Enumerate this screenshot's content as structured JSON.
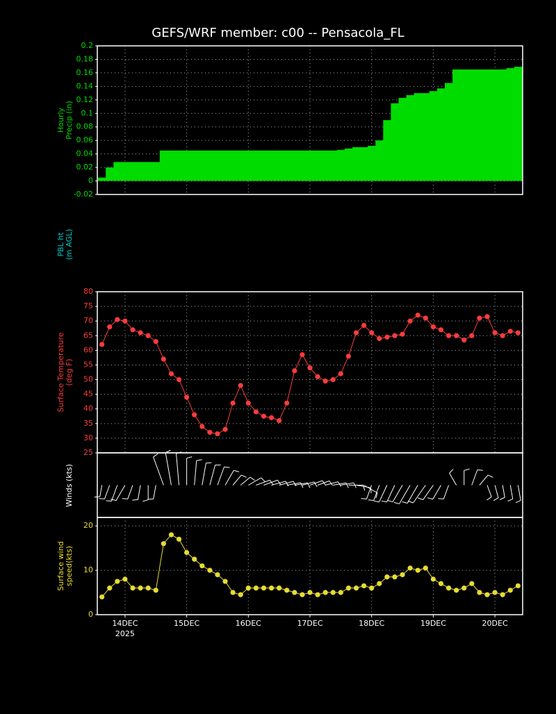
{
  "chart_data": [
    {
      "type": "bar",
      "title": "GEFS/WRF member: c00 -- Pensacola_FL",
      "ylabel": [
        "Hourly",
        "Precip (in)"
      ],
      "color": "#00dc00",
      "grid": true,
      "xlim": [
        13.55,
        20.45
      ],
      "ylim": [
        -0.02,
        0.2
      ],
      "yticks": [
        -0.02,
        0,
        0.02,
        0.04,
        0.06,
        0.08,
        0.1,
        0.12,
        0.14,
        0.16,
        0.18,
        0.2
      ],
      "x": [
        13.625,
        13.75,
        13.875,
        14,
        14.125,
        14.25,
        14.375,
        14.5,
        14.625,
        14.75,
        14.875,
        15,
        15.125,
        15.25,
        15.375,
        15.5,
        15.625,
        15.75,
        15.875,
        16,
        16.125,
        16.25,
        16.375,
        16.5,
        16.625,
        16.75,
        16.875,
        17,
        17.125,
        17.25,
        17.375,
        17.5,
        17.625,
        17.75,
        17.875,
        18,
        18.125,
        18.25,
        18.375,
        18.5,
        18.625,
        18.75,
        18.875,
        19,
        19.125,
        19.25,
        19.375,
        19.5,
        19.625,
        19.75,
        19.875,
        20,
        20.125,
        20.25,
        20.375
      ],
      "values": [
        0.005,
        0.02,
        0.028,
        0.028,
        0.028,
        0.028,
        0.028,
        0.028,
        0.045,
        0.045,
        0.045,
        0.045,
        0.045,
        0.045,
        0.045,
        0.045,
        0.045,
        0.045,
        0.045,
        0.045,
        0.045,
        0.045,
        0.045,
        0.045,
        0.045,
        0.045,
        0.045,
        0.045,
        0.045,
        0.045,
        0.045,
        0.046,
        0.048,
        0.05,
        0.05,
        0.052,
        0.06,
        0.09,
        0.115,
        0.123,
        0.127,
        0.13,
        0.13,
        0.133,
        0.137,
        0.145,
        0.165,
        0.165,
        0.165,
        0.165,
        0.165,
        0.165,
        0.165,
        0.167,
        0.169
      ]
    },
    {
      "type": "empty",
      "ylabel": [
        "PBL ht",
        "(m AGL)"
      ],
      "color": "#00c8c8"
    },
    {
      "type": "line",
      "ylabel": [
        "Surface Temperature",
        "(deg F)"
      ],
      "color": "#fa3c3c",
      "grid": true,
      "xlim": [
        13.55,
        20.45
      ],
      "ylim": [
        25,
        80
      ],
      "yticks": [
        25,
        30,
        35,
        40,
        45,
        50,
        55,
        60,
        65,
        70,
        75,
        80
      ],
      "x": [
        13.625,
        13.75,
        13.875,
        14,
        14.125,
        14.25,
        14.375,
        14.5,
        14.625,
        14.75,
        14.875,
        15,
        15.125,
        15.25,
        15.375,
        15.5,
        15.625,
        15.75,
        15.875,
        16,
        16.125,
        16.25,
        16.375,
        16.5,
        16.625,
        16.75,
        16.875,
        17,
        17.125,
        17.25,
        17.375,
        17.5,
        17.625,
        17.75,
        17.875,
        18,
        18.125,
        18.25,
        18.375,
        18.5,
        18.625,
        18.75,
        18.875,
        19,
        19.125,
        19.25,
        19.375,
        19.5,
        19.625,
        19.75,
        19.875,
        20,
        20.125,
        20.25,
        20.375
      ],
      "values": [
        62,
        68,
        70.5,
        70,
        67,
        66,
        65,
        63,
        57,
        52,
        50,
        44,
        38,
        34,
        32,
        31.5,
        33,
        42,
        48,
        42,
        39,
        37.5,
        37,
        36,
        42,
        53,
        58.5,
        54,
        51,
        49.5,
        50,
        52,
        58,
        66,
        68.5,
        66,
        64,
        64.5,
        65,
        65.5,
        70,
        72,
        71,
        68,
        67,
        65,
        65,
        63.5,
        65,
        71,
        71.5,
        66,
        65,
        66.5,
        66
      ]
    },
    {
      "type": "barbs",
      "ylabel": [
        "Winds (kts)"
      ],
      "color": "#ffffff",
      "xlim": [
        13.55,
        20.45
      ],
      "x": [
        13.625,
        13.75,
        13.875,
        14,
        14.125,
        14.25,
        14.375,
        14.5,
        14.625,
        14.75,
        14.875,
        15,
        15.125,
        15.25,
        15.375,
        15.5,
        15.625,
        15.75,
        15.875,
        16,
        16.125,
        16.25,
        16.375,
        16.5,
        16.625,
        16.75,
        16.875,
        17,
        17.125,
        17.25,
        17.375,
        17.5,
        17.625,
        17.75,
        17.875,
        18,
        18.125,
        18.25,
        18.375,
        18.5,
        18.625,
        18.75,
        18.875,
        19,
        19.125,
        19.25,
        19.375,
        19.5,
        19.625,
        19.75,
        19.875,
        20,
        20.125,
        20.25,
        20.375
      ],
      "direction": [
        190,
        200,
        200,
        210,
        200,
        190,
        180,
        190,
        340,
        350,
        355,
        0,
        5,
        10,
        15,
        20,
        30,
        40,
        50,
        60,
        70,
        70,
        75,
        75,
        80,
        80,
        75,
        70,
        70,
        75,
        80,
        80,
        90,
        100,
        120,
        200,
        200,
        205,
        205,
        210,
        210,
        210,
        215,
        215,
        210,
        200,
        330,
        0,
        20,
        40,
        160,
        165,
        170,
        170,
        170
      ]
    },
    {
      "type": "scatter",
      "ylabel": [
        "Surface wind",
        "speed(kts)"
      ],
      "color": "#e6dc32",
      "grid": true,
      "xlim": [
        13.55,
        20.45
      ],
      "ylim": [
        0,
        21.9
      ],
      "yticks": [
        0,
        10,
        20
      ],
      "xticks": [
        {
          "value": 14,
          "label": "14DEC"
        },
        {
          "value": 15,
          "label": "15DEC"
        },
        {
          "value": 16,
          "label": "16DEC"
        },
        {
          "value": 17,
          "label": "17DEC"
        },
        {
          "value": 18,
          "label": "18DEC"
        },
        {
          "value": 19,
          "label": "19DEC"
        },
        {
          "value": 20,
          "label": "20DEC"
        }
      ],
      "year": "2025",
      "x": [
        13.625,
        13.75,
        13.875,
        14,
        14.125,
        14.25,
        14.375,
        14.5,
        14.625,
        14.75,
        14.875,
        15,
        15.125,
        15.25,
        15.375,
        15.5,
        15.625,
        15.75,
        15.875,
        16,
        16.125,
        16.25,
        16.375,
        16.5,
        16.625,
        16.75,
        16.875,
        17,
        17.125,
        17.25,
        17.375,
        17.5,
        17.625,
        17.75,
        17.875,
        18,
        18.125,
        18.25,
        18.375,
        18.5,
        18.625,
        18.75,
        18.875,
        19,
        19.125,
        19.25,
        19.375,
        19.5,
        19.625,
        19.75,
        19.875,
        20,
        20.125,
        20.25,
        20.375
      ],
      "values": [
        4,
        6,
        7.5,
        8,
        6,
        6,
        6,
        5.5,
        16,
        18,
        17,
        14,
        12.5,
        11,
        10,
        9,
        7.5,
        5,
        4.5,
        6,
        6,
        6,
        6,
        6,
        5.5,
        5,
        4.5,
        5,
        4.5,
        5,
        5,
        5,
        6,
        6,
        6.5,
        6,
        7,
        8.5,
        8.5,
        9,
        10.5,
        10,
        10.5,
        8,
        7,
        6,
        5.5,
        6,
        7,
        5,
        4.5,
        5,
        4.5,
        5.5,
        6.5
      ]
    }
  ]
}
